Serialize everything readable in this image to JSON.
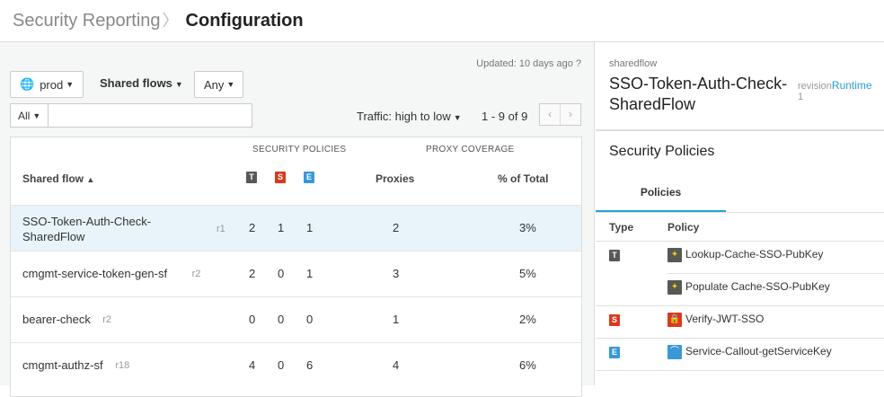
{
  "header": {
    "breadcrumb": "Security Reporting",
    "title": "Configuration"
  },
  "toolbar": {
    "updated": "Updated: 10 days ago",
    "env": "prod",
    "type": "Shared flows",
    "filter": "Any",
    "search_scope": "All",
    "search_value": "",
    "sort": "Traffic: high to low",
    "page_info": "1 - 9 of 9"
  },
  "table": {
    "group_security": "SECURITY POLICIES",
    "group_coverage": "PROXY COVERAGE",
    "col_name": "Shared flow",
    "col_proxies": "Proxies",
    "col_pct": "% of Total",
    "badges": {
      "T": "T",
      "S": "S",
      "E": "E"
    },
    "colors": {
      "T": "#555a55",
      "S": "#d93a1e",
      "E": "#3a98d6"
    },
    "rows": [
      {
        "name": "SSO-Token-Auth-Check-SharedFlow",
        "rev": "r1",
        "t": "2",
        "s": "1",
        "e": "1",
        "proxies": "2",
        "pct": "3%"
      },
      {
        "name": "cmgmt-service-token-gen-sf",
        "rev": "r2",
        "t": "2",
        "s": "0",
        "e": "1",
        "proxies": "3",
        "pct": "5%"
      },
      {
        "name": "bearer-check",
        "rev": "r2",
        "t": "0",
        "s": "0",
        "e": "0",
        "proxies": "1",
        "pct": "2%"
      },
      {
        "name": "cmgmt-authz-sf",
        "rev": "r18",
        "t": "4",
        "s": "0",
        "e": "6",
        "proxies": "4",
        "pct": "6%"
      }
    ]
  },
  "detail": {
    "kind": "sharedflow",
    "name": "SSO-Token-Auth-Check-SharedFlow",
    "revision_label": "revision",
    "revision": "1",
    "runtime_link": "Runtime",
    "section": "Security Policies",
    "tab": "Policies",
    "col_type": "Type",
    "col_policy": "Policy",
    "policies": [
      {
        "type": "T",
        "name": "Lookup-Cache-SSO-PubKey",
        "icon": "cache-icon"
      },
      {
        "type": "",
        "name": "Populate Cache-SSO-PubKey",
        "icon": "cache-icon"
      },
      {
        "type": "S",
        "name": "Verify-JWT-SSO",
        "icon": "lock-icon"
      },
      {
        "type": "E",
        "name": "Service-Callout-getServiceKey",
        "icon": "callout-icon"
      }
    ]
  }
}
